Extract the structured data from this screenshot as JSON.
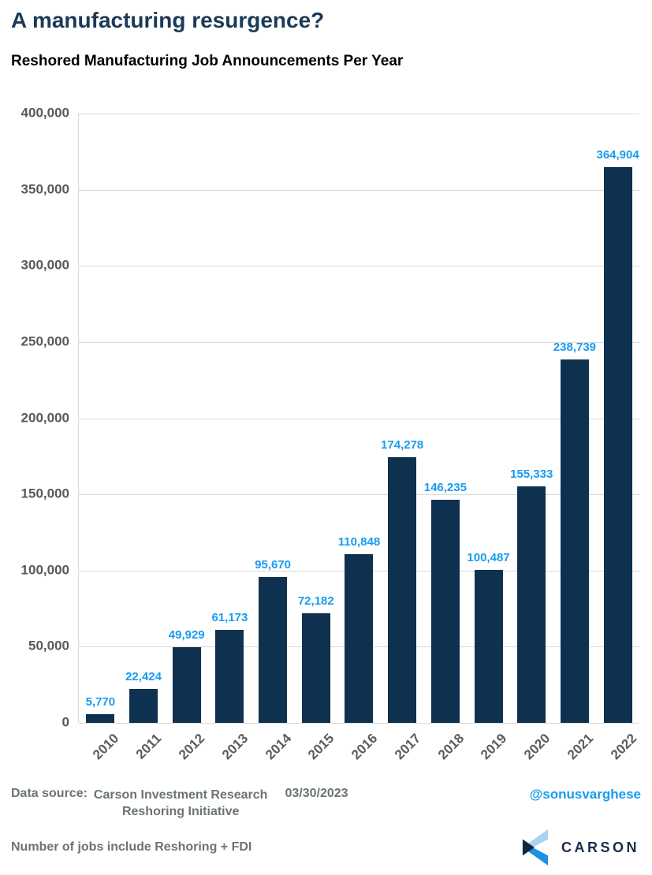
{
  "page": {
    "title": "A manufacturing resurgence?",
    "subtitle": "Reshored Manufacturing Job Announcements Per Year"
  },
  "chart_data": {
    "type": "bar",
    "title": "Reshored Manufacturing Job Announcements Per Year",
    "xlabel": "",
    "ylabel": "",
    "categories": [
      "2010",
      "2011",
      "2012",
      "2013",
      "2014",
      "2015",
      "2016",
      "2017",
      "2018",
      "2019",
      "2020",
      "2021",
      "2022"
    ],
    "values": [
      5770,
      22424,
      49929,
      61173,
      95670,
      72182,
      110848,
      174278,
      146235,
      100487,
      155333,
      238739,
      364904
    ],
    "value_labels": [
      "5,770",
      "22,424",
      "49,929",
      "61,173",
      "95,670",
      "72,182",
      "110,848",
      "174,278",
      "146,235",
      "100,487",
      "155,333",
      "238,739",
      "364,904"
    ],
    "ylim": [
      0,
      400000
    ],
    "y_tick_interval": 50000,
    "y_tick_labels_top_to_bottom": [
      "400,000",
      "350,000",
      "300,000",
      "250,000",
      "200,000",
      "150,000",
      "100,000",
      "50,000",
      "0"
    ],
    "grid": true,
    "legend": "none",
    "bar_color": "#0E3150",
    "value_label_color": "#189BF0"
  },
  "footer": {
    "data_source_label": "Data source:",
    "source_line1": "Carson Investment Research",
    "source_line2": "Reshoring Initiative",
    "date": "03/30/2023",
    "handle": "@sonusvarghese",
    "note": "Number of jobs include Reshoring +  FDI",
    "logo_text": "CARSON"
  },
  "colors": {
    "title": "#1C3A57",
    "subtitle": "#000000",
    "bar": "#0E3150",
    "value_label": "#189BF0",
    "axis_tick": "#595959",
    "gridline": "#D9D9D9",
    "footer_text": "#6B7570",
    "logo_navy": "#1A2B4C",
    "logo_light_blue": "#A8D4F2",
    "logo_blue": "#1E90E0"
  }
}
